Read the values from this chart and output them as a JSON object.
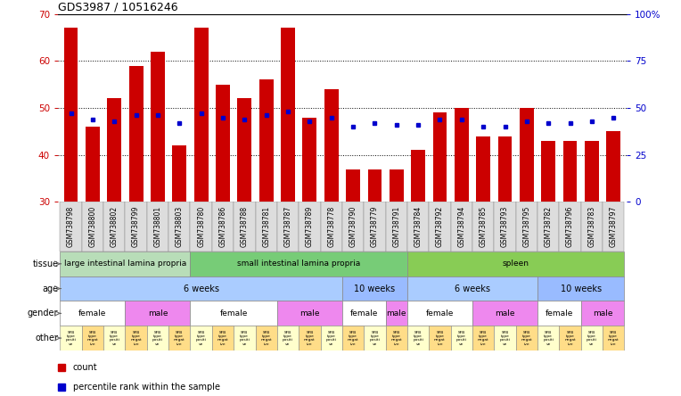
{
  "title": "GDS3987 / 10516246",
  "samples": [
    "GSM738798",
    "GSM738800",
    "GSM738802",
    "GSM738799",
    "GSM738801",
    "GSM738803",
    "GSM738780",
    "GSM738786",
    "GSM738788",
    "GSM738781",
    "GSM738787",
    "GSM738789",
    "GSM738778",
    "GSM738790",
    "GSM738779",
    "GSM738791",
    "GSM738784",
    "GSM738792",
    "GSM738794",
    "GSM738785",
    "GSM738793",
    "GSM738795",
    "GSM738782",
    "GSM738796",
    "GSM738783",
    "GSM738797"
  ],
  "counts": [
    67,
    46,
    52,
    59,
    62,
    42,
    67,
    55,
    52,
    56,
    67,
    48,
    54,
    37,
    37,
    37,
    41,
    49,
    50,
    44,
    44,
    50,
    43,
    43,
    43,
    45
  ],
  "percentiles": [
    47,
    44,
    43,
    46,
    46,
    42,
    47,
    45,
    44,
    46,
    48,
    43,
    45,
    40,
    42,
    41,
    41,
    44,
    44,
    40,
    40,
    43,
    42,
    42,
    43,
    45
  ],
  "ylim_left": [
    30,
    70
  ],
  "ylim_right": [
    0,
    100
  ],
  "yticks_left": [
    30,
    40,
    50,
    60,
    70
  ],
  "yticks_right": [
    0,
    25,
    50,
    75,
    100
  ],
  "ytick_labels_right": [
    "0",
    "25",
    "50",
    "75",
    "100%"
  ],
  "bar_color": "#cc0000",
  "dot_color": "#0000cc",
  "left_tick_color": "#cc0000",
  "right_tick_color": "#0000cc",
  "tissue_groups": [
    {
      "label": "large intestinal lamina propria",
      "start": 0,
      "end": 6,
      "color": "#b8ddb8"
    },
    {
      "label": "small intestinal lamina propria",
      "start": 6,
      "end": 16,
      "color": "#77cc77"
    },
    {
      "label": "spleen",
      "start": 16,
      "end": 26,
      "color": "#88cc55"
    }
  ],
  "age_groups": [
    {
      "label": "6 weeks",
      "start": 0,
      "end": 13,
      "color": "#aaccff"
    },
    {
      "label": "10 weeks",
      "start": 13,
      "end": 16,
      "color": "#99bbff"
    },
    {
      "label": "6 weeks",
      "start": 16,
      "end": 22,
      "color": "#aaccff"
    },
    {
      "label": "10 weeks",
      "start": 22,
      "end": 26,
      "color": "#99bbff"
    }
  ],
  "gender_groups": [
    {
      "label": "female",
      "start": 0,
      "end": 3,
      "color": "#ffffff"
    },
    {
      "label": "male",
      "start": 3,
      "end": 6,
      "color": "#ee88ee"
    },
    {
      "label": "female",
      "start": 6,
      "end": 10,
      "color": "#ffffff"
    },
    {
      "label": "male",
      "start": 10,
      "end": 13,
      "color": "#ee88ee"
    },
    {
      "label": "female",
      "start": 13,
      "end": 15,
      "color": "#ffffff"
    },
    {
      "label": "male",
      "start": 15,
      "end": 16,
      "color": "#ee88ee"
    },
    {
      "label": "female",
      "start": 16,
      "end": 19,
      "color": "#ffffff"
    },
    {
      "label": "male",
      "start": 19,
      "end": 22,
      "color": "#ee88ee"
    },
    {
      "label": "female",
      "start": 22,
      "end": 24,
      "color": "#ffffff"
    },
    {
      "label": "male",
      "start": 24,
      "end": 26,
      "color": "#ee88ee"
    }
  ],
  "other_groups_positive": [
    0,
    2,
    4,
    6,
    8,
    10,
    12,
    14,
    16,
    18,
    20,
    22,
    24
  ],
  "other_color_pos": "#ffffcc",
  "other_color_neg": "#ffdd88",
  "row_labels": [
    "tissue",
    "age",
    "gender",
    "other"
  ],
  "legend_count_color": "#cc0000",
  "legend_pct_color": "#0000cc",
  "bg_color": "#ffffff",
  "xticklabel_bg": "#dddddd"
}
